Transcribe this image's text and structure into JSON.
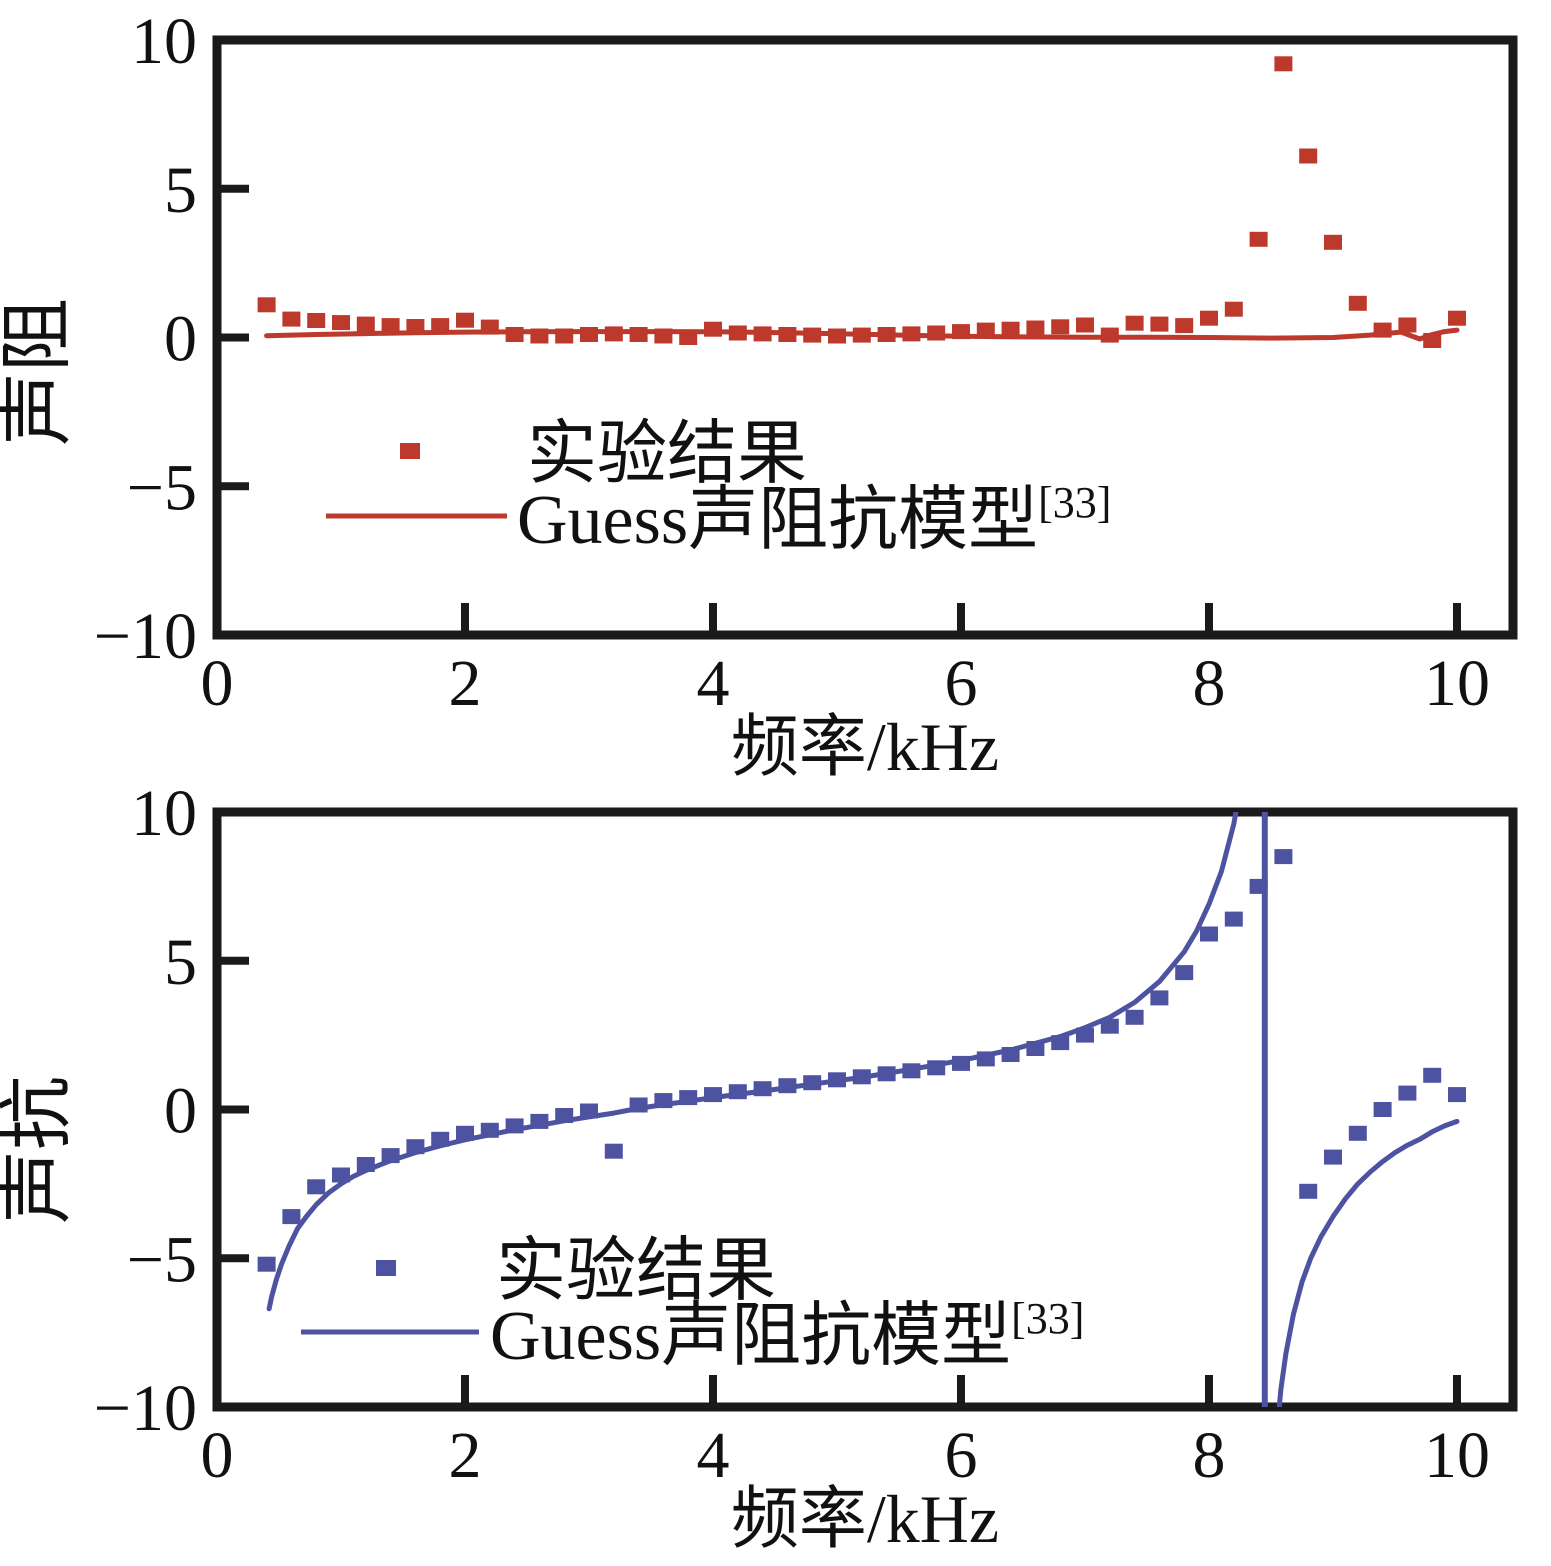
{
  "page": {
    "background": "#ffffff",
    "axis_color": "#1a1a1a"
  },
  "colors": {
    "experiment_red": "#bd392c",
    "model_red": "#bd392c",
    "experiment_blue": "#4e53a1",
    "model_blue": "#4e53a1",
    "axis": "#1a1a1a",
    "background": "#ffffff"
  },
  "chart_data": [
    {
      "id": "resistance",
      "type": "scatter",
      "title": "",
      "xlabel": "频率/kHz",
      "ylabel": "声阻",
      "xlim": [
        0,
        10.45
      ],
      "ylim": [
        -10,
        10
      ],
      "xticks": [
        0,
        2,
        4,
        6,
        8,
        10
      ],
      "yticks": [
        10,
        5,
        0,
        -5,
        -10
      ],
      "xtick_labels": [
        "0",
        "2",
        "4",
        "6",
        "8",
        "10"
      ],
      "ytick_labels": [
        "10",
        "5",
        "0",
        "−5",
        "−10"
      ],
      "grid": false,
      "legend_position": "inside-lower-left",
      "color": "#bd392c",
      "legend": [
        {
          "label": "实验结果",
          "marker": "square"
        },
        {
          "label": "Guess声阻抗模型",
          "superscript": "[33]",
          "marker": "line"
        }
      ],
      "series": [
        {
          "name": "实验结果",
          "type": "scatter",
          "x": [
            0.4,
            0.6,
            0.8,
            1.0,
            1.2,
            1.4,
            1.6,
            1.8,
            2.0,
            2.2,
            2.4,
            2.6,
            2.8,
            3.0,
            3.2,
            3.4,
            3.6,
            3.8,
            4.0,
            4.2,
            4.4,
            4.6,
            4.8,
            5.0,
            5.2,
            5.4,
            5.6,
            5.8,
            6.0,
            6.2,
            6.4,
            6.6,
            6.8,
            7.0,
            7.2,
            7.4,
            7.6,
            7.8,
            8.0,
            8.2,
            8.4,
            8.6,
            8.8,
            9.0,
            9.2,
            9.4,
            9.6,
            9.8,
            10.0
          ],
          "y": [
            1.1,
            0.62,
            0.57,
            0.5,
            0.45,
            0.4,
            0.37,
            0.4,
            0.58,
            0.35,
            0.1,
            0.05,
            0.05,
            0.1,
            0.12,
            0.1,
            0.05,
            0.0,
            0.28,
            0.15,
            0.12,
            0.1,
            0.08,
            0.05,
            0.08,
            0.1,
            0.12,
            0.15,
            0.2,
            0.25,
            0.28,
            0.32,
            0.36,
            0.42,
            0.08,
            0.48,
            0.45,
            0.4,
            0.65,
            0.95,
            3.3,
            9.2,
            6.1,
            3.2,
            1.15,
            0.25,
            0.42,
            -0.1,
            0.65
          ]
        },
        {
          "name": "Guess声阻抗模型[33]",
          "type": "line",
          "segments": [
            {
              "x": [
                0.4,
                0.8,
                1.2,
                1.6,
                2.0,
                2.4,
                2.8,
                3.2,
                3.6,
                4.0,
                4.4,
                4.8,
                5.2,
                5.6,
                6.0,
                6.5,
                7.0,
                7.5,
                8.0,
                8.5,
                9.0,
                9.3,
                9.55,
                9.7,
                9.8,
                9.9,
                10.0
              ],
              "y": [
                0.06,
                0.1,
                0.13,
                0.16,
                0.18,
                0.19,
                0.2,
                0.2,
                0.2,
                0.19,
                0.17,
                0.14,
                0.11,
                0.07,
                0.04,
                0.02,
                0.01,
                0.01,
                0.0,
                -0.02,
                0.0,
                0.08,
                0.18,
                -0.05,
                0.1,
                0.2,
                0.25
              ]
            }
          ]
        }
      ]
    },
    {
      "id": "reactance",
      "type": "scatter",
      "title": "",
      "xlabel": "频率/kHz",
      "ylabel": "声抗",
      "xlim": [
        0,
        10.45
      ],
      "ylim": [
        -10,
        10
      ],
      "xticks": [
        0,
        2,
        4,
        6,
        8,
        10
      ],
      "yticks": [
        10,
        5,
        0,
        -5,
        -10
      ],
      "xtick_labels": [
        "0",
        "2",
        "4",
        "6",
        "8",
        "10"
      ],
      "ytick_labels": [
        "10",
        "5",
        "0",
        "−5",
        "−10"
      ],
      "grid": false,
      "legend_position": "inside-lower-left",
      "color": "#4e53a1",
      "asymptote_x": 8.45,
      "legend": [
        {
          "label": "实验结果",
          "marker": "square"
        },
        {
          "label": "Guess声阻抗模型",
          "superscript": "[33]",
          "marker": "line"
        }
      ],
      "series": [
        {
          "name": "实验结果",
          "type": "scatter",
          "x": [
            0.4,
            0.6,
            0.8,
            1.0,
            1.2,
            1.4,
            1.6,
            1.8,
            2.0,
            2.2,
            2.4,
            2.6,
            2.8,
            3.0,
            3.2,
            3.4,
            3.6,
            3.8,
            4.0,
            4.2,
            4.4,
            4.6,
            4.8,
            5.0,
            5.2,
            5.4,
            5.6,
            5.8,
            6.0,
            6.2,
            6.4,
            6.6,
            6.8,
            7.0,
            7.2,
            7.4,
            7.6,
            7.8,
            8.0,
            8.2,
            8.4,
            8.6,
            8.8,
            9.0,
            9.2,
            9.4,
            9.6,
            9.8,
            10.0
          ],
          "y": [
            -5.2,
            -3.6,
            -2.6,
            -2.2,
            -1.85,
            -1.55,
            -1.25,
            -1.0,
            -0.8,
            -0.7,
            -0.55,
            -0.4,
            -0.2,
            -0.05,
            -1.4,
            0.15,
            0.3,
            0.4,
            0.5,
            0.6,
            0.7,
            0.8,
            0.9,
            1.0,
            1.1,
            1.2,
            1.3,
            1.4,
            1.55,
            1.7,
            1.85,
            2.05,
            2.25,
            2.5,
            2.8,
            3.1,
            3.75,
            4.6,
            5.9,
            6.4,
            7.5,
            8.5,
            -2.75,
            -1.6,
            -0.8,
            0.0,
            0.55,
            1.15,
            0.5
          ]
        },
        {
          "name": "Guess声阻抗模型[33]",
          "type": "line",
          "segments": [
            {
              "x": [
                0.42,
                0.44,
                0.48,
                0.52,
                0.58,
                0.65,
                0.72,
                0.8,
                0.9,
                1.0,
                1.1,
                1.2,
                1.4,
                1.6,
                1.8,
                2.0,
                2.2,
                2.4,
                2.6,
                2.8,
                3.0,
                3.2,
                3.35,
                3.5,
                3.8,
                4.0,
                4.4,
                4.8,
                5.2,
                5.6,
                6.0,
                6.4,
                6.8,
                7.0,
                7.2,
                7.4,
                7.6,
                7.8,
                7.9,
                8.0,
                8.1,
                8.15,
                8.2,
                8.23
              ],
              "y": [
                -6.7,
                -6.3,
                -5.7,
                -5.2,
                -4.6,
                -4.0,
                -3.6,
                -3.2,
                -2.8,
                -2.5,
                -2.25,
                -2.05,
                -1.72,
                -1.45,
                -1.22,
                -1.02,
                -0.85,
                -0.68,
                -0.53,
                -0.38,
                -0.25,
                -0.12,
                0.0,
                0.1,
                0.28,
                0.4,
                0.62,
                0.85,
                1.08,
                1.35,
                1.65,
                2.0,
                2.45,
                2.75,
                3.1,
                3.6,
                4.3,
                5.3,
                6.0,
                6.9,
                8.0,
                8.8,
                9.6,
                10.3
              ]
            },
            {
              "x": [
                8.56,
                8.58,
                8.62,
                8.68,
                8.75,
                8.82,
                8.9,
                9.0,
                9.1,
                9.2,
                9.3,
                9.4,
                9.5,
                9.6,
                9.7,
                9.8,
                9.9,
                10.0
              ],
              "y": [
                -10.3,
                -9.4,
                -8.2,
                -6.9,
                -5.8,
                -5.0,
                -4.3,
                -3.6,
                -3.0,
                -2.5,
                -2.1,
                -1.75,
                -1.45,
                -1.2,
                -1.0,
                -0.75,
                -0.55,
                -0.4
              ]
            }
          ]
        }
      ]
    }
  ]
}
